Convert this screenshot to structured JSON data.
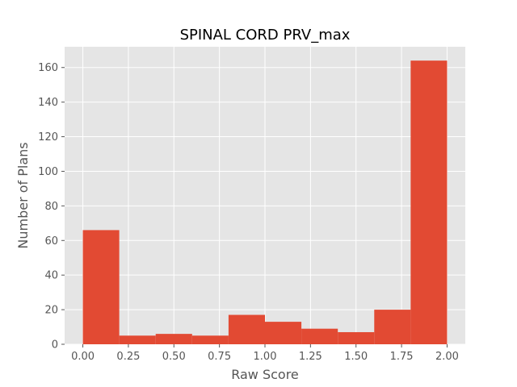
{
  "chart_data": {
    "type": "bar",
    "title": "SPINAL CORD PRV_max",
    "xlabel": "Raw Score",
    "ylabel": "Number of Plans",
    "bin_edges": [
      0.0,
      0.2,
      0.4,
      0.6,
      0.8,
      1.0,
      1.2,
      1.4,
      1.6,
      1.8,
      2.0
    ],
    "values": [
      66,
      5,
      6,
      5,
      17,
      13,
      9,
      7,
      20,
      164
    ],
    "xlim": [
      -0.1,
      2.1
    ],
    "ylim": [
      0,
      172
    ],
    "xticks": [
      "0.00",
      "0.25",
      "0.50",
      "0.75",
      "1.00",
      "1.25",
      "1.50",
      "1.75",
      "2.00"
    ],
    "yticks": [
      "0",
      "20",
      "40",
      "60",
      "80",
      "100",
      "120",
      "140",
      "160"
    ],
    "grid": true,
    "colors": {
      "bar": "#E24A33",
      "background": "#E5E5E5",
      "grid": "#FFFFFF"
    }
  }
}
